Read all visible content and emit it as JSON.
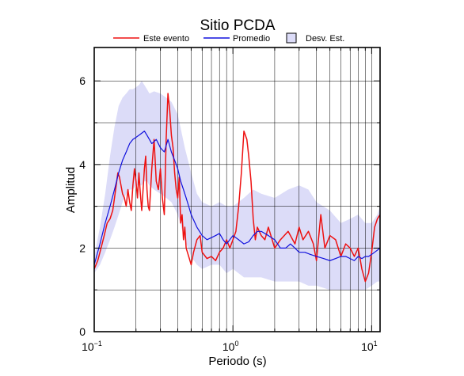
{
  "chart_data": {
    "type": "line",
    "title": "Sitio PCDA",
    "xlabel": "Periodo (s)",
    "ylabel": "Amplitud",
    "x_scale": "log",
    "xlim": [
      0.1,
      11.5
    ],
    "ylim": [
      0,
      6.8
    ],
    "grid": true,
    "legend_position": "top",
    "x_ticks": [
      {
        "value": 0.1,
        "base": "10",
        "exp": "−1"
      },
      {
        "value": 1,
        "base": "10",
        "exp": "0"
      },
      {
        "value": 10,
        "base": "10",
        "exp": "1"
      }
    ],
    "y_ticks": [
      {
        "value": 0,
        "label": "0"
      },
      {
        "value": 2,
        "label": "2"
      },
      {
        "value": 4,
        "label": "4"
      },
      {
        "value": 6,
        "label": "6"
      }
    ],
    "legend": [
      {
        "label": "Este evento",
        "type": "line",
        "color": "#ee1111"
      },
      {
        "label": "Promedio",
        "type": "line",
        "color": "#1111dd"
      },
      {
        "label": "Desv. Est.",
        "type": "band",
        "color": "#dcdcf8"
      }
    ],
    "series": [
      {
        "name": "Este evento",
        "color": "#ee1111",
        "x": [
          0.1,
          0.106,
          0.112,
          0.118,
          0.124,
          0.13,
          0.136,
          0.14,
          0.144,
          0.148,
          0.152,
          0.156,
          0.16,
          0.165,
          0.17,
          0.175,
          0.18,
          0.185,
          0.19,
          0.195,
          0.2,
          0.205,
          0.21,
          0.215,
          0.22,
          0.225,
          0.23,
          0.235,
          0.24,
          0.245,
          0.25,
          0.26,
          0.27,
          0.28,
          0.29,
          0.3,
          0.31,
          0.32,
          0.33,
          0.34,
          0.35,
          0.36,
          0.37,
          0.38,
          0.39,
          0.4,
          0.41,
          0.42,
          0.43,
          0.44,
          0.45,
          0.46,
          0.48,
          0.5,
          0.52,
          0.55,
          0.58,
          0.6,
          0.65,
          0.7,
          0.75,
          0.8,
          0.85,
          0.9,
          0.95,
          1.0,
          1.05,
          1.1,
          1.15,
          1.2,
          1.23,
          1.26,
          1.3,
          1.35,
          1.4,
          1.45,
          1.5,
          1.6,
          1.7,
          1.8,
          2.0,
          2.2,
          2.5,
          2.8,
          3.0,
          3.2,
          3.5,
          3.8,
          4.0,
          4.3,
          4.6,
          5.0,
          5.5,
          6.0,
          6.5,
          7.0,
          7.5,
          8.0,
          8.5,
          9.0,
          9.5,
          10.0,
          10.5,
          11.0,
          11.5
        ],
        "y": [
          1.5,
          1.7,
          2.0,
          2.3,
          2.6,
          2.7,
          2.9,
          3.2,
          3.5,
          3.8,
          3.7,
          3.5,
          3.3,
          3.2,
          3.0,
          3.4,
          3.1,
          2.9,
          3.5,
          3.9,
          3.6,
          3.2,
          3.8,
          3.3,
          2.9,
          3.4,
          3.9,
          4.2,
          3.4,
          3.0,
          2.9,
          3.9,
          4.6,
          3.6,
          3.4,
          3.9,
          3.2,
          2.8,
          4.6,
          5.7,
          5.3,
          4.7,
          4.4,
          3.8,
          3.4,
          3.2,
          3.7,
          2.6,
          2.8,
          2.2,
          2.5,
          2.0,
          1.8,
          1.6,
          1.9,
          2.2,
          2.3,
          1.9,
          1.75,
          1.8,
          1.7,
          1.9,
          2.0,
          2.2,
          2.0,
          2.2,
          2.4,
          3.0,
          3.8,
          4.8,
          4.7,
          4.6,
          4.2,
          3.6,
          2.7,
          2.2,
          2.5,
          2.3,
          2.2,
          2.5,
          2.0,
          2.2,
          2.4,
          2.1,
          2.5,
          2.2,
          2.4,
          2.1,
          1.7,
          2.8,
          2.0,
          2.3,
          2.2,
          1.8,
          2.1,
          2.0,
          1.8,
          2.0,
          1.5,
          1.2,
          1.4,
          1.9,
          2.5,
          2.7,
          2.8
        ]
      },
      {
        "name": "Promedio",
        "color": "#1111dd",
        "x": [
          0.1,
          0.11,
          0.12,
          0.13,
          0.14,
          0.15,
          0.16,
          0.17,
          0.18,
          0.19,
          0.2,
          0.21,
          0.22,
          0.23,
          0.24,
          0.25,
          0.26,
          0.27,
          0.28,
          0.29,
          0.3,
          0.32,
          0.34,
          0.36,
          0.38,
          0.4,
          0.42,
          0.44,
          0.46,
          0.48,
          0.5,
          0.55,
          0.6,
          0.65,
          0.7,
          0.75,
          0.8,
          0.85,
          0.9,
          1.0,
          1.1,
          1.2,
          1.3,
          1.4,
          1.5,
          1.6,
          1.8,
          2.0,
          2.2,
          2.4,
          2.6,
          2.8,
          3.0,
          3.3,
          3.6,
          4.0,
          4.5,
          5.0,
          5.5,
          6.0,
          6.5,
          7.0,
          7.5,
          8.0,
          8.5,
          9.0,
          9.5,
          10.0,
          10.5,
          11.0,
          11.5
        ],
        "y": [
          1.6,
          2.1,
          2.6,
          3.0,
          3.4,
          3.8,
          4.1,
          4.3,
          4.5,
          4.6,
          4.65,
          4.7,
          4.75,
          4.8,
          4.7,
          4.6,
          4.5,
          4.55,
          4.6,
          4.5,
          4.4,
          4.3,
          4.6,
          4.3,
          4.1,
          3.9,
          3.6,
          3.4,
          3.2,
          3.0,
          2.8,
          2.5,
          2.3,
          2.2,
          2.25,
          2.3,
          2.35,
          2.2,
          2.1,
          2.3,
          2.2,
          2.1,
          2.15,
          2.3,
          2.4,
          2.4,
          2.3,
          2.2,
          2.0,
          2.0,
          2.1,
          2.0,
          1.9,
          1.9,
          1.85,
          1.8,
          1.75,
          1.7,
          1.75,
          1.8,
          1.8,
          1.75,
          1.7,
          1.8,
          1.75,
          1.8,
          1.8,
          1.85,
          1.9,
          1.95,
          2.0
        ]
      }
    ],
    "std_band": {
      "name": "Desv. Est.",
      "color": "#dcdcf8",
      "x": [
        0.1,
        0.11,
        0.12,
        0.13,
        0.14,
        0.15,
        0.16,
        0.17,
        0.18,
        0.19,
        0.2,
        0.21,
        0.22,
        0.23,
        0.24,
        0.25,
        0.27,
        0.3,
        0.33,
        0.36,
        0.4,
        0.45,
        0.5,
        0.55,
        0.6,
        0.7,
        0.8,
        0.9,
        1.0,
        1.2,
        1.4,
        1.6,
        2.0,
        2.5,
        3.0,
        3.5,
        4.0,
        5.0,
        6.0,
        7.0,
        8.0,
        9.0,
        10.0,
        11.0,
        11.5
      ],
      "upper": [
        1.8,
        2.5,
        3.3,
        4.2,
        4.9,
        5.4,
        5.6,
        5.7,
        5.8,
        5.8,
        5.85,
        5.9,
        6.0,
        5.9,
        5.8,
        5.7,
        5.75,
        5.7,
        5.6,
        5.5,
        5.2,
        4.4,
        3.8,
        3.3,
        3.1,
        3.0,
        3.1,
        3.0,
        3.0,
        3.2,
        3.4,
        3.3,
        3.2,
        3.4,
        3.5,
        3.4,
        3.1,
        2.9,
        2.6,
        2.7,
        2.8,
        2.6,
        2.6,
        2.8,
        3.0
      ],
      "lower": [
        1.4,
        1.6,
        1.9,
        2.2,
        2.5,
        2.8,
        3.1,
        3.3,
        3.4,
        3.4,
        3.5,
        3.5,
        3.5,
        3.6,
        3.6,
        3.5,
        3.4,
        3.3,
        3.2,
        3.1,
        2.8,
        2.2,
        1.8,
        1.6,
        1.5,
        1.6,
        1.6,
        1.4,
        1.5,
        1.3,
        1.3,
        1.3,
        1.2,
        1.2,
        1.2,
        1.1,
        1.1,
        1.0,
        1.0,
        1.0,
        1.0,
        1.0,
        1.1,
        1.2,
        1.2
      ]
    }
  }
}
